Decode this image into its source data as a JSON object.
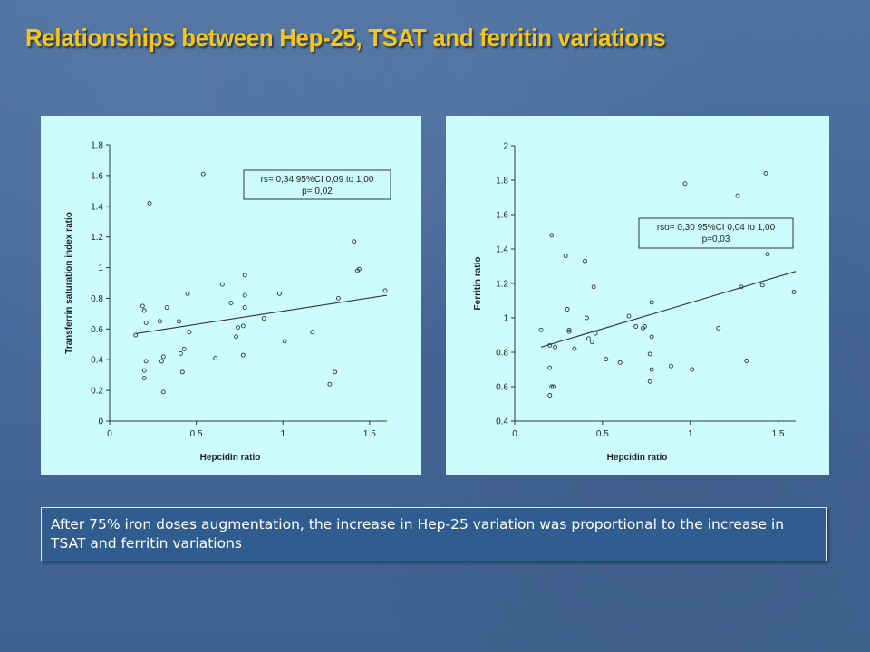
{
  "slide": {
    "title": "Relationships between Hep-25, TSAT and ferritin variations",
    "caption": "After 75% iron doses augmentation, the increase in Hep-25 variation was proportional to the increase in TSAT and ferritin variations",
    "colors": {
      "title": "#f5c518",
      "panel": "#ccfcfd",
      "caption_box": "#2f5d90"
    }
  },
  "chart_data": [
    {
      "type": "scatter",
      "title": "",
      "xlabel": "Hepcidin ratio",
      "ylabel": "Transferrin saturation index ratio",
      "xlim": [
        0,
        1.6
      ],
      "ylim": [
        0,
        1.8
      ],
      "xticks": [
        0,
        0.5,
        1,
        1.5
      ],
      "xtick_labels": [
        "0",
        "0.5",
        "1",
        "1.5"
      ],
      "yticks": [
        0,
        0.2,
        0.4,
        0.6,
        0.8,
        1,
        1.2,
        1.4,
        1.6,
        1.8
      ],
      "ytick_labels": [
        "0",
        "0.2",
        "0.4",
        "0.6",
        "0.8",
        "1",
        "1.2",
        "1.4",
        "1.6",
        "1.8"
      ],
      "grid": false,
      "annotation": [
        "rs= 0,34 95%CI 0,09 to 1,00",
        "p= 0,02"
      ],
      "annotation_position": "top-right",
      "trendline": {
        "x": [
          0.15,
          1.6
        ],
        "y": [
          0.57,
          0.82
        ]
      },
      "points": [
        {
          "x": 0.15,
          "y": 0.56
        },
        {
          "x": 0.19,
          "y": 0.75
        },
        {
          "x": 0.2,
          "y": 0.72
        },
        {
          "x": 0.2,
          "y": 0.33
        },
        {
          "x": 0.2,
          "y": 0.28
        },
        {
          "x": 0.21,
          "y": 0.39
        },
        {
          "x": 0.21,
          "y": 0.64
        },
        {
          "x": 0.23,
          "y": 1.42
        },
        {
          "x": 0.29,
          "y": 0.65
        },
        {
          "x": 0.3,
          "y": 0.39
        },
        {
          "x": 0.31,
          "y": 0.42
        },
        {
          "x": 0.31,
          "y": 0.19
        },
        {
          "x": 0.33,
          "y": 0.74
        },
        {
          "x": 0.4,
          "y": 0.65
        },
        {
          "x": 0.41,
          "y": 0.44
        },
        {
          "x": 0.42,
          "y": 0.32
        },
        {
          "x": 0.43,
          "y": 0.47
        },
        {
          "x": 0.45,
          "y": 0.83
        },
        {
          "x": 0.46,
          "y": 0.58
        },
        {
          "x": 0.54,
          "y": 1.61
        },
        {
          "x": 0.61,
          "y": 0.41
        },
        {
          "x": 0.65,
          "y": 0.89
        },
        {
          "x": 0.7,
          "y": 0.77
        },
        {
          "x": 0.73,
          "y": 0.55
        },
        {
          "x": 0.74,
          "y": 0.61
        },
        {
          "x": 0.77,
          "y": 0.62
        },
        {
          "x": 0.77,
          "y": 0.43
        },
        {
          "x": 0.78,
          "y": 0.74
        },
        {
          "x": 0.78,
          "y": 0.82
        },
        {
          "x": 0.78,
          "y": 0.95
        },
        {
          "x": 0.89,
          "y": 0.67
        },
        {
          "x": 0.98,
          "y": 0.83
        },
        {
          "x": 1.01,
          "y": 0.52
        },
        {
          "x": 1.17,
          "y": 0.58
        },
        {
          "x": 1.27,
          "y": 0.24
        },
        {
          "x": 1.3,
          "y": 0.32
        },
        {
          "x": 1.32,
          "y": 0.8
        },
        {
          "x": 1.41,
          "y": 1.17
        },
        {
          "x": 1.43,
          "y": 0.98
        },
        {
          "x": 1.44,
          "y": 0.99
        },
        {
          "x": 1.59,
          "y": 0.85
        }
      ]
    },
    {
      "type": "scatter",
      "title": "",
      "xlabel": "Hepcidin ratio",
      "ylabel": "Ferritin ratio",
      "xlim": [
        0,
        1.6
      ],
      "ylim": [
        0.4,
        2
      ],
      "xticks": [
        0,
        0.5,
        1,
        1.5
      ],
      "xtick_labels": [
        "0",
        "0.5",
        "1",
        "1.5"
      ],
      "yticks": [
        0.4,
        0.6,
        0.8,
        1,
        1.2,
        1.4,
        1.6,
        1.8,
        2
      ],
      "ytick_labels": [
        "0.4",
        "0.6",
        "0.8",
        "1",
        "1.2",
        "1.4",
        "1.6",
        "1.8",
        "2"
      ],
      "grid": false,
      "annotation": [
        "rso= 0,30  95%CI 0,04 to 1,00",
        "p=0,03"
      ],
      "annotation_position": "top-right",
      "trendline": {
        "x": [
          0.15,
          1.6
        ],
        "y": [
          0.83,
          1.27
        ]
      },
      "points": [
        {
          "x": 0.15,
          "y": 0.93
        },
        {
          "x": 0.2,
          "y": 0.84
        },
        {
          "x": 0.2,
          "y": 0.71
        },
        {
          "x": 0.2,
          "y": 0.55
        },
        {
          "x": 0.21,
          "y": 0.6
        },
        {
          "x": 0.22,
          "y": 0.6
        },
        {
          "x": 0.21,
          "y": 1.48
        },
        {
          "x": 0.23,
          "y": 0.83
        },
        {
          "x": 0.29,
          "y": 1.36
        },
        {
          "x": 0.3,
          "y": 1.05
        },
        {
          "x": 0.31,
          "y": 0.92
        },
        {
          "x": 0.31,
          "y": 0.93
        },
        {
          "x": 0.34,
          "y": 0.82
        },
        {
          "x": 0.4,
          "y": 1.33
        },
        {
          "x": 0.41,
          "y": 1.0
        },
        {
          "x": 0.42,
          "y": 0.88
        },
        {
          "x": 0.44,
          "y": 0.86
        },
        {
          "x": 0.45,
          "y": 1.18
        },
        {
          "x": 0.46,
          "y": 0.91
        },
        {
          "x": 0.52,
          "y": 0.76
        },
        {
          "x": 0.6,
          "y": 0.74
        },
        {
          "x": 0.65,
          "y": 1.01
        },
        {
          "x": 0.69,
          "y": 0.95
        },
        {
          "x": 0.73,
          "y": 0.94
        },
        {
          "x": 0.74,
          "y": 0.95
        },
        {
          "x": 0.77,
          "y": 0.63
        },
        {
          "x": 0.77,
          "y": 0.79
        },
        {
          "x": 0.78,
          "y": 0.7
        },
        {
          "x": 0.78,
          "y": 1.09
        },
        {
          "x": 0.78,
          "y": 0.89
        },
        {
          "x": 0.89,
          "y": 0.72
        },
        {
          "x": 0.97,
          "y": 1.78
        },
        {
          "x": 1.01,
          "y": 0.7
        },
        {
          "x": 1.16,
          "y": 0.94
        },
        {
          "x": 1.27,
          "y": 1.71
        },
        {
          "x": 1.29,
          "y": 1.18
        },
        {
          "x": 1.32,
          "y": 0.75
        },
        {
          "x": 1.41,
          "y": 1.19
        },
        {
          "x": 1.43,
          "y": 1.84
        },
        {
          "x": 1.44,
          "y": 1.37
        },
        {
          "x": 1.59,
          "y": 1.15
        }
      ]
    }
  ]
}
